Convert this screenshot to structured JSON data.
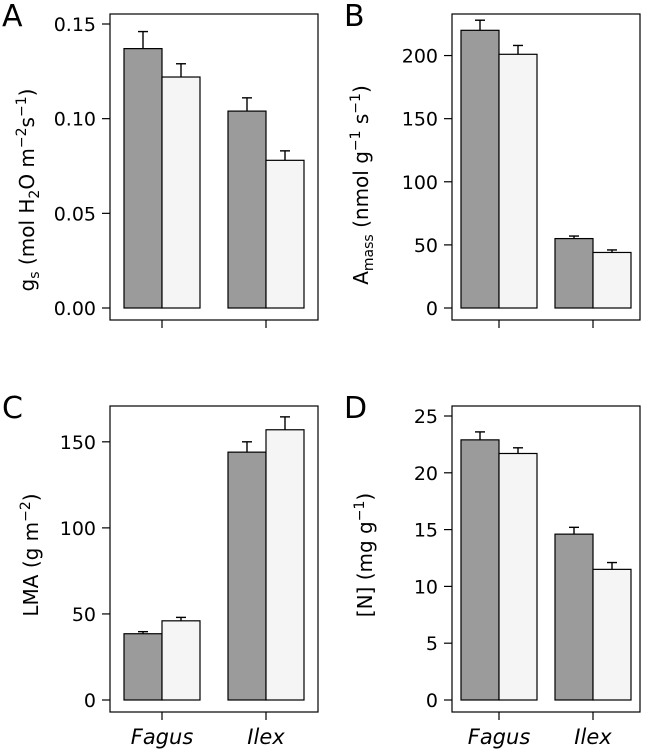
{
  "colors": {
    "series_dark": "#9b9b9b",
    "series_light": "#f5f5f5"
  },
  "chart_data": [
    {
      "panel": "A",
      "type": "bar",
      "categories": [
        "Fagus",
        "Ilex"
      ],
      "series": [
        {
          "values": [
            0.137,
            0.104
          ],
          "errors": [
            0.009,
            0.007
          ]
        },
        {
          "values": [
            0.122,
            0.078
          ],
          "errors": [
            0.007,
            0.005
          ]
        }
      ],
      "ylabel": "gs (mol H2O m−2 s−1)",
      "ylim": [
        0,
        0.15
      ],
      "yticks": [
        "0.00",
        "0.05",
        "0.10",
        "0.15"
      ],
      "show_xlabels": false
    },
    {
      "panel": "B",
      "type": "bar",
      "categories": [
        "Fagus",
        "Ilex"
      ],
      "series": [
        {
          "values": [
            220,
            55
          ],
          "errors": [
            8,
            2
          ]
        },
        {
          "values": [
            201,
            44
          ],
          "errors": [
            7,
            2
          ]
        }
      ],
      "ylabel": "Amass (nmol g−1 s−1)",
      "ylim": [
        0,
        225
      ],
      "yticks": [
        "0",
        "50",
        "100",
        "150",
        "200"
      ],
      "show_xlabels": false
    },
    {
      "panel": "C",
      "type": "bar",
      "categories": [
        "Fagus",
        "Ilex"
      ],
      "series": [
        {
          "values": [
            38.5,
            144
          ],
          "errors": [
            1.2,
            6
          ]
        },
        {
          "values": [
            46,
            157
          ],
          "errors": [
            2,
            7.5
          ]
        }
      ],
      "ylabel": "LMA (g m−2)",
      "ylim": [
        0,
        165
      ],
      "yticks": [
        "0",
        "50",
        "100",
        "150"
      ],
      "show_xlabels": true
    },
    {
      "panel": "D",
      "type": "bar",
      "categories": [
        "Fagus",
        "Ilex"
      ],
      "series": [
        {
          "values": [
            22.9,
            14.6
          ],
          "errors": [
            0.7,
            0.6
          ]
        },
        {
          "values": [
            21.7,
            11.5
          ],
          "errors": [
            0.5,
            0.6
          ]
        }
      ],
      "ylabel": "[N] (mg g−1)",
      "ylim": [
        0,
        25
      ],
      "yticks": [
        "0",
        "5",
        "10",
        "15",
        "20",
        "25"
      ],
      "show_xlabels": true
    }
  ]
}
